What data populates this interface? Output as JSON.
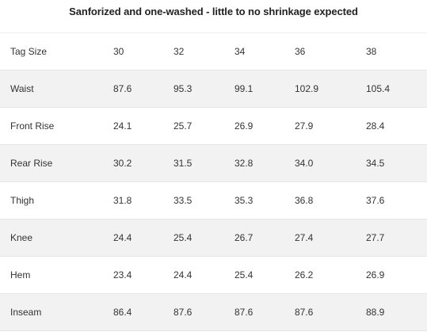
{
  "title": "Sanforized and one-washed - little to no shrinkage expected",
  "table": {
    "rows": [
      {
        "label": "Tag Size",
        "values": [
          "30",
          "32",
          "34",
          "36",
          "38"
        ]
      },
      {
        "label": "Waist",
        "values": [
          "87.6",
          "95.3",
          "99.1",
          "102.9",
          "105.4"
        ]
      },
      {
        "label": "Front Rise",
        "values": [
          "24.1",
          "25.7",
          "26.9",
          "27.9",
          "28.4"
        ]
      },
      {
        "label": "Rear Rise",
        "values": [
          "30.2",
          "31.5",
          "32.8",
          "34.0",
          "34.5"
        ]
      },
      {
        "label": "Thigh",
        "values": [
          "31.8",
          "33.5",
          "35.3",
          "36.8",
          "37.6"
        ]
      },
      {
        "label": "Knee",
        "values": [
          "24.4",
          "25.4",
          "26.7",
          "27.4",
          "27.7"
        ]
      },
      {
        "label": "Hem",
        "values": [
          "23.4",
          "24.4",
          "25.4",
          "26.2",
          "26.9"
        ]
      },
      {
        "label": "Inseam",
        "values": [
          "86.4",
          "87.6",
          "87.6",
          "87.6",
          "88.9"
        ]
      }
    ]
  },
  "colors": {
    "stripe": "#f2f2f2",
    "text": "#333333",
    "title": "#222222"
  }
}
